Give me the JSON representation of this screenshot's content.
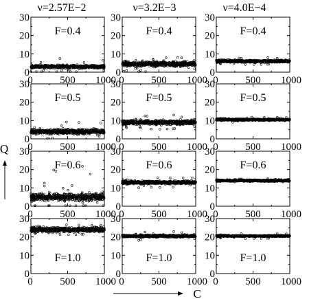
{
  "figure": {
    "column_titles": [
      "ν=2.57E−2",
      "ν=3.2E−3",
      "ν=4.0E−4"
    ],
    "xlabel": "C",
    "ylabel": "Q"
  },
  "chart_data": {
    "type": "scatter",
    "layout": "grid 4 rows x 3 columns",
    "xlim": [
      0,
      1000
    ],
    "ylim": [
      0,
      30
    ],
    "xticks": [
      "0",
      "500",
      "1000"
    ],
    "yticks": [
      "0",
      "10",
      "20",
      "30"
    ],
    "marker": "open-circle",
    "panels": [
      {
        "nu": "ν=2.57E−2",
        "label": "F=0.4",
        "center": 3.0,
        "spread": 1.3,
        "outlier_max": 8
      },
      {
        "nu": "ν=3.2E−3",
        "label": "F=0.4",
        "center": 4.5,
        "spread": 2.0,
        "outlier_max": 9
      },
      {
        "nu": "ν=4.0E−4",
        "label": "F=0.4",
        "center": 6.0,
        "spread": 1.0,
        "outlier_max": 8
      },
      {
        "nu": "ν=2.57E−2",
        "label": "F=0.5",
        "center": 4.0,
        "spread": 2.0,
        "outlier_max": 10
      },
      {
        "nu": "ν=3.2E−3",
        "label": "F=0.5",
        "center": 9.0,
        "spread": 1.8,
        "outlier_max": 13
      },
      {
        "nu": "ν=4.0E−4",
        "label": "F=0.5",
        "center": 10.5,
        "spread": 0.8,
        "outlier_max": 12
      },
      {
        "nu": "ν=2.57E−2",
        "label": "F=0.6",
        "center": 5.0,
        "spread": 3.0,
        "outlier_max": 22
      },
      {
        "nu": "ν=3.2E−3",
        "label": "F=0.6",
        "center": 13.0,
        "spread": 1.3,
        "outlier_max": 16
      },
      {
        "nu": "ν=4.0E−4",
        "label": "F=0.6",
        "center": 14.0,
        "spread": 0.8,
        "outlier_max": 15
      },
      {
        "nu": "ν=2.57E−2",
        "label": "F=1.0",
        "center": 24.0,
        "spread": 2.0,
        "outlier_max": 27
      },
      {
        "nu": "ν=3.2E−3",
        "label": "F=1.0",
        "center": 20.5,
        "spread": 1.0,
        "outlier_max": 23
      },
      {
        "nu": "ν=4.0E−4",
        "label": "F=1.0",
        "center": 20.5,
        "spread": 0.6,
        "outlier_max": 22
      }
    ]
  }
}
